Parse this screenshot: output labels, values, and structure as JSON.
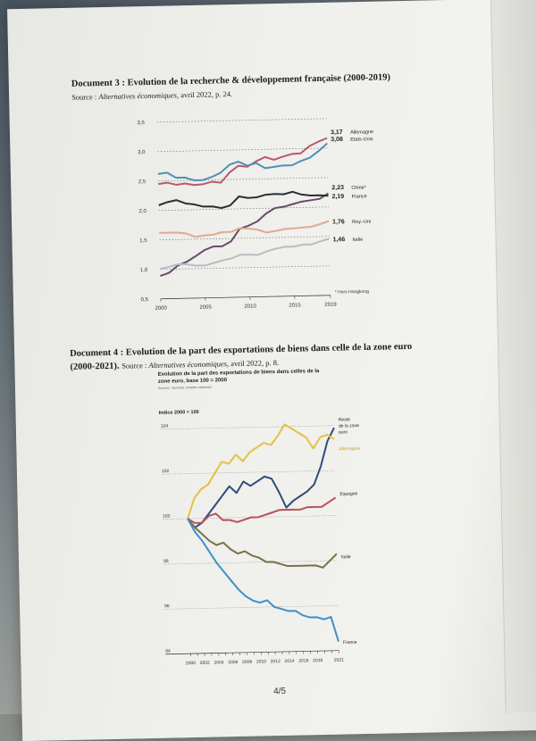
{
  "doc3": {
    "title": "Document 3 : Evolution de la recherche & développement française (2000-2019)",
    "source_label": "Source :",
    "source_pub": "Alternatives économiques",
    "source_rest": ", avril 2022, p. 24."
  },
  "doc4": {
    "title_line1": "Document 4 : Evolution de la part des exportations de biens dans celle de la zone euro",
    "title_line2": "(2000-2021).",
    "source_label": "Source :",
    "source_pub": "Alternatives économiques",
    "source_rest": ", avril 2022, p. 8."
  },
  "page_number": "4/5",
  "colors": {
    "allemagne": "#b85a6a",
    "etats_unis": "#4f90b5",
    "chine": "#6a4a6a",
    "france_rd": "#2d2d33",
    "roy_uni": "#e0aa8e",
    "italie_rd": "#b8bcc4",
    "reste": "#2e4c7a",
    "allemagne_exp": "#e3c245",
    "espagne": "#b8505e",
    "italie_exp": "#7a7048",
    "france_exp": "#3c91cc"
  },
  "chart_data": [
    {
      "type": "line",
      "x": [
        2000,
        2001,
        2002,
        2003,
        2004,
        2005,
        2006,
        2007,
        2008,
        2009,
        2010,
        2011,
        2012,
        2013,
        2014,
        2015,
        2016,
        2017,
        2018,
        2019
      ],
      "xticks": [
        "2000",
        "2005",
        "2010",
        "2015",
        "2019"
      ],
      "yticks": [
        "3,5",
        "3,0",
        "2,5",
        "2,0",
        "1,5",
        "1,0",
        "0,5"
      ],
      "ylim": [
        0.5,
        3.5
      ],
      "footnote": "* Hors Hongkong",
      "series": [
        {
          "name": "Allemagne",
          "end_label": "3,17",
          "values": [
            2.45,
            2.47,
            2.43,
            2.45,
            2.42,
            2.43,
            2.47,
            2.45,
            2.62,
            2.73,
            2.71,
            2.8,
            2.87,
            2.82,
            2.87,
            2.91,
            2.92,
            3.04,
            3.11,
            3.17
          ]
        },
        {
          "name": "Etats-Unis",
          "end_label": "3,08",
          "values": [
            2.62,
            2.64,
            2.55,
            2.55,
            2.5,
            2.5,
            2.55,
            2.62,
            2.75,
            2.8,
            2.73,
            2.77,
            2.68,
            2.7,
            2.72,
            2.72,
            2.79,
            2.84,
            2.95,
            3.08
          ]
        },
        {
          "name": "Chine*",
          "end_label": "2,23",
          "values": [
            0.89,
            0.94,
            1.06,
            1.12,
            1.21,
            1.31,
            1.37,
            1.37,
            1.45,
            1.66,
            1.71,
            1.78,
            1.91,
            2.0,
            2.02,
            2.06,
            2.1,
            2.12,
            2.14,
            2.23
          ]
        },
        {
          "name": "France",
          "end_label": "2,19",
          "values": [
            2.09,
            2.14,
            2.17,
            2.11,
            2.09,
            2.05,
            2.05,
            2.02,
            2.06,
            2.21,
            2.18,
            2.19,
            2.23,
            2.24,
            2.23,
            2.27,
            2.22,
            2.2,
            2.2,
            2.19
          ]
        },
        {
          "name": "Roy.-Uni",
          "end_label": "1,76",
          "values": [
            1.62,
            1.62,
            1.62,
            1.6,
            1.54,
            1.56,
            1.57,
            1.61,
            1.61,
            1.67,
            1.66,
            1.64,
            1.59,
            1.61,
            1.64,
            1.65,
            1.66,
            1.67,
            1.71,
            1.76
          ]
        },
        {
          "name": "Italie",
          "end_label": "1,46",
          "values": [
            1.01,
            1.04,
            1.08,
            1.08,
            1.05,
            1.05,
            1.09,
            1.13,
            1.16,
            1.22,
            1.22,
            1.21,
            1.27,
            1.31,
            1.34,
            1.34,
            1.37,
            1.37,
            1.42,
            1.46
          ]
        }
      ]
    },
    {
      "type": "line",
      "title": "Evolution de la part des exportations de biens dans celles de la zone euro, base 100 = 2000",
      "source_note": "Sources : Eurostat, comptes nationaux",
      "ylabel": "Indice 2000 = 100",
      "x": [
        2000,
        2001,
        2002,
        2003,
        2004,
        2005,
        2006,
        2007,
        2008,
        2009,
        2010,
        2011,
        2012,
        2013,
        2014,
        2015,
        2016,
        2017,
        2018,
        2019,
        2020,
        2021
      ],
      "xticks": [
        "2000",
        "2002",
        "2004",
        "2006",
        "2008",
        "2010",
        "2012",
        "2014",
        "2016",
        "2018",
        "2021"
      ],
      "yticks": [
        "104",
        "102",
        "100",
        "98",
        "96",
        "94"
      ],
      "ylim": [
        94,
        104
      ],
      "series": [
        {
          "name": "Reste de la zone euro",
          "values": [
            100,
            99.6,
            99.8,
            100.2,
            100.6,
            101.0,
            101.4,
            101.1,
            101.6,
            101.4,
            101.6,
            101.8,
            101.7,
            101.1,
            100.4,
            100.7,
            100.9,
            101.1,
            101.4,
            102.2,
            103.3,
            103.9
          ]
        },
        {
          "name": "Allemagne",
          "values": [
            100,
            100.9,
            101.3,
            101.5,
            102.0,
            102.5,
            102.4,
            102.8,
            102.5,
            102.9,
            103.1,
            103.3,
            103.2,
            103.6,
            104.1,
            103.9,
            103.7,
            103.5,
            103.0,
            103.5,
            103.6,
            103.4
          ]
        },
        {
          "name": "Espagne",
          "values": [
            100,
            99.8,
            99.8,
            100.1,
            100.2,
            99.9,
            99.9,
            99.8,
            99.9,
            100.0,
            100.0,
            100.1,
            100.2,
            100.3,
            100.3,
            100.3,
            100.3,
            100.4,
            100.4,
            100.4,
            100.6,
            100.8
          ]
        },
        {
          "name": "Italie",
          "values": [
            100,
            99.6,
            99.3,
            99.0,
            98.8,
            98.9,
            98.6,
            98.4,
            98.5,
            98.3,
            98.2,
            98.0,
            98.0,
            97.9,
            97.8,
            97.8,
            97.8,
            97.8,
            97.8,
            97.7,
            98.0,
            98.3
          ]
        },
        {
          "name": "France",
          "values": [
            100,
            99.4,
            99.0,
            98.5,
            98.0,
            97.6,
            97.2,
            96.8,
            96.5,
            96.3,
            96.2,
            96.3,
            96.0,
            95.9,
            95.8,
            95.8,
            95.6,
            95.5,
            95.5,
            95.4,
            95.5,
            94.4
          ]
        }
      ]
    }
  ]
}
